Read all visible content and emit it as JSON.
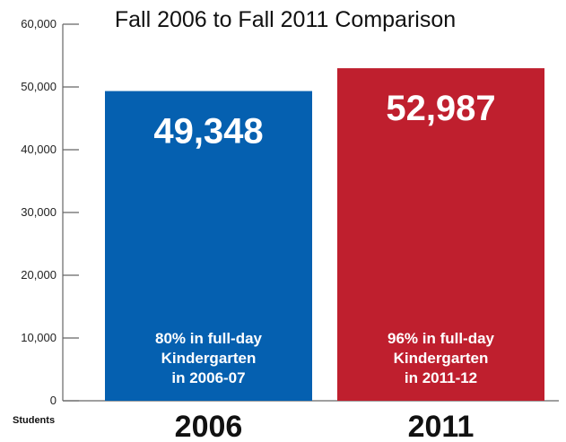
{
  "chart_data": {
    "type": "bar",
    "title": "Fall 2006 to Fall 2011 Comparison",
    "ylabel": "Students",
    "ylim": [
      0,
      60000
    ],
    "yticks": [
      0,
      10000,
      20000,
      30000,
      40000,
      50000,
      60000
    ],
    "ytick_labels": [
      "0",
      "10,000",
      "20,000",
      "30,000",
      "40,000",
      "50,000",
      "60,000"
    ],
    "categories": [
      "2006",
      "2011"
    ],
    "values": [
      49348,
      52987
    ],
    "value_labels": [
      "49,348",
      "52,987"
    ],
    "annotations": [
      [
        "80% in full-day",
        "Kindergarten",
        "in 2006-07"
      ],
      [
        "96% in full-day",
        "Kindergarten",
        "in 2011-12"
      ]
    ],
    "colors": [
      "#0560b0",
      "#bf1f2e"
    ],
    "grid": false,
    "legend": "none"
  }
}
